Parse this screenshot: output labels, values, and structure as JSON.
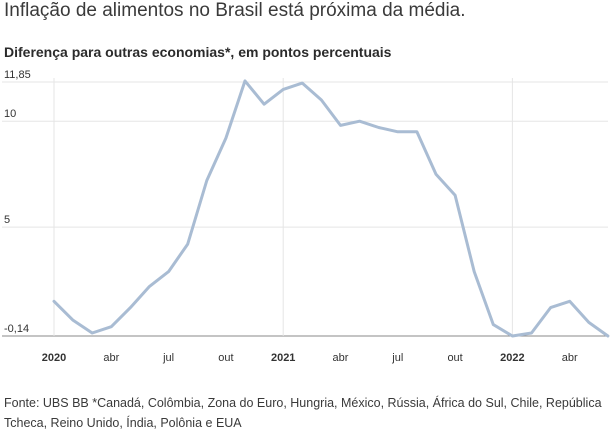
{
  "title": "Inflação de alimentos no Brasil está próxima da média.",
  "subtitle": "Diferença para outras economias*, em pontos percentuais",
  "footnote": "Fonte: UBS BB *Canadá, Colômbia, Zona do Euro, Hungria, México, Rússia, África do Sul, Chile, República Tcheca, Reino Unido, Índia, Polônia e EUA",
  "colors": {
    "line": "#a9bcd3",
    "grid": "#e5e5e5",
    "baseline": "#888888"
  },
  "chart_data": {
    "type": "line",
    "title": "Inflação de alimentos no Brasil está próxima da média.",
    "subtitle": "Diferença para outras economias*, em pontos percentuais",
    "ylim": [
      -0.14,
      11.85
    ],
    "yticks": [
      {
        "value": 11.85,
        "label": "11,85"
      },
      {
        "value": 10,
        "label": "10"
      },
      {
        "value": 5,
        "label": "5"
      },
      {
        "value": -0.14,
        "label": "-0,14"
      }
    ],
    "xlim": [
      "2020-01",
      "2022-05"
    ],
    "xticks": [
      {
        "value": "2020-01",
        "label": "2020",
        "major": true
      },
      {
        "value": "2020-04",
        "label": "abr",
        "major": false
      },
      {
        "value": "2020-07",
        "label": "jul",
        "major": false
      },
      {
        "value": "2020-10",
        "label": "out",
        "major": false
      },
      {
        "value": "2021-01",
        "label": "2021",
        "major": true
      },
      {
        "value": "2021-04",
        "label": "abr",
        "major": false
      },
      {
        "value": "2021-07",
        "label": "jul",
        "major": false
      },
      {
        "value": "2021-10",
        "label": "out",
        "major": false
      },
      {
        "value": "2022-01",
        "label": "2022",
        "major": true
      },
      {
        "value": "2022-04",
        "label": "abr",
        "major": false
      }
    ],
    "grid": true,
    "series": [
      {
        "x": [
          "2020-01",
          "2020-02",
          "2020-03",
          "2020-04",
          "2020-05",
          "2020-06",
          "2020-07",
          "2020-08",
          "2020-09",
          "2020-10",
          "2020-11",
          "2020-12",
          "2021-01",
          "2021-02",
          "2021-03",
          "2021-04",
          "2021-05",
          "2021-06",
          "2021-07",
          "2021-08",
          "2021-09",
          "2021-10",
          "2021-11",
          "2021-12",
          "2022-01",
          "2022-02",
          "2022-03",
          "2022-04",
          "2022-05",
          "2022-06"
        ],
        "values": [
          1.5,
          0.6,
          0.0,
          0.3,
          1.2,
          2.2,
          2.9,
          4.2,
          7.2,
          9.2,
          11.9,
          10.8,
          11.5,
          11.8,
          11.0,
          9.8,
          10.0,
          9.7,
          9.5,
          9.5,
          7.5,
          6.5,
          2.9,
          0.4,
          -0.14,
          0.0,
          1.2,
          1.5,
          0.5,
          -0.14
        ]
      }
    ]
  }
}
